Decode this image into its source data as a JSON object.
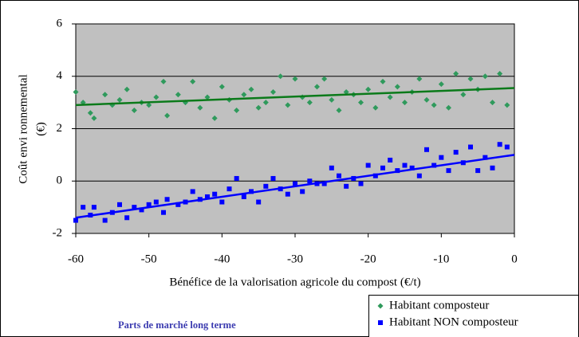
{
  "chart_data": {
    "type": "scatter",
    "xlabel": "Bénéfice de la valorisation agricole du compost  (€/t)",
    "ylabel": [
      "Coût envi ronnemental",
      "(€)"
    ],
    "annotation": "Parts de marché long terme",
    "xlim": [
      -60,
      0
    ],
    "xticks": [
      -60,
      -50,
      -40,
      -30,
      -20,
      -10,
      0
    ],
    "ylim": [
      -2,
      6
    ],
    "yticks": [
      -2,
      0,
      2,
      4,
      6
    ],
    "grid": true,
    "legend": "bottom-right",
    "series": [
      {
        "name": "Habitant composteur",
        "color": "#2f9a5c",
        "marker": "diamond",
        "line_color": "#0b7a1a",
        "x": [
          -60,
          -59,
          -58,
          -57.5,
          -56,
          -55,
          -54,
          -53,
          -52,
          -51,
          -50,
          -49,
          -48,
          -47.5,
          -46,
          -45,
          -44,
          -43,
          -42,
          -41,
          -40,
          -39,
          -38,
          -37,
          -36,
          -35,
          -34,
          -33,
          -32,
          -31,
          -30,
          -29,
          -28,
          -27,
          -26,
          -25,
          -24,
          -23,
          -22,
          -21,
          -20,
          -19,
          -18,
          -17,
          -16,
          -15,
          -14,
          -13,
          -12,
          -11,
          -10,
          -9,
          -8,
          -7,
          -6,
          -5,
          -4,
          -3,
          -2,
          -1
        ],
        "y": [
          3.4,
          3.0,
          2.6,
          2.4,
          3.3,
          2.9,
          3.1,
          3.5,
          2.7,
          3.0,
          2.9,
          3.2,
          3.8,
          2.5,
          3.3,
          3.0,
          3.8,
          2.8,
          3.2,
          2.4,
          3.6,
          3.1,
          2.7,
          3.3,
          3.5,
          2.8,
          3.0,
          3.4,
          4.0,
          2.9,
          3.9,
          3.2,
          3.0,
          3.6,
          3.9,
          3.1,
          2.7,
          3.4,
          3.3,
          3.0,
          3.5,
          2.8,
          3.8,
          3.2,
          3.6,
          3.0,
          3.4,
          3.9,
          3.1,
          2.9,
          3.7,
          2.8,
          4.1,
          3.3,
          3.9,
          3.5,
          4.0,
          3.0,
          4.1,
          2.9
        ],
        "trendline": {
          "x": [
            -60,
            0
          ],
          "y": [
            2.9,
            3.55
          ]
        }
      },
      {
        "name": "Habitant NON composteur",
        "color": "#0000ff",
        "marker": "square",
        "line_color": "#0000ff",
        "x": [
          -60,
          -59,
          -58,
          -57.5,
          -56,
          -55,
          -54,
          -53,
          -52,
          -51,
          -50,
          -49,
          -48,
          -47.5,
          -46,
          -45,
          -44,
          -43,
          -42,
          -41,
          -40,
          -39,
          -38,
          -37,
          -36,
          -35,
          -34,
          -33,
          -32,
          -31,
          -30,
          -29,
          -28,
          -27,
          -26,
          -25,
          -24,
          -23,
          -22,
          -21,
          -20,
          -19,
          -18,
          -17,
          -16,
          -15,
          -14,
          -13,
          -12,
          -11,
          -10,
          -9,
          -8,
          -7,
          -6,
          -5,
          -4,
          -3,
          -2,
          -1
        ],
        "y": [
          -1.5,
          -1.0,
          -1.3,
          -1.0,
          -1.5,
          -1.2,
          -0.9,
          -1.4,
          -1.0,
          -1.1,
          -0.9,
          -0.8,
          -1.2,
          -0.7,
          -0.9,
          -0.8,
          -0.4,
          -0.7,
          -0.6,
          -0.5,
          -0.8,
          -0.3,
          0.1,
          -0.6,
          -0.4,
          -0.8,
          -0.2,
          0.1,
          -0.3,
          -0.5,
          -0.1,
          -0.4,
          0.0,
          -0.1,
          -0.1,
          0.5,
          0.2,
          -0.2,
          0.1,
          -0.1,
          0.6,
          0.2,
          0.5,
          0.8,
          0.4,
          0.6,
          0.5,
          0.2,
          1.2,
          0.6,
          0.9,
          0.4,
          1.1,
          0.7,
          1.3,
          0.4,
          0.9,
          0.5,
          1.4,
          1.3
        ],
        "trendline": {
          "x": [
            -60,
            0
          ],
          "y": [
            -1.4,
            1.0
          ]
        }
      }
    ]
  }
}
